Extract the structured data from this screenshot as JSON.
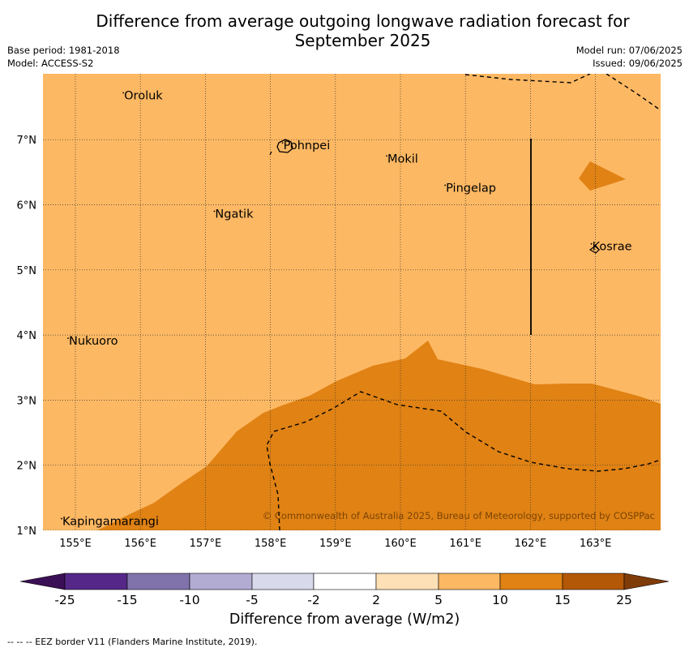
{
  "title_line1": "Difference from average outgoing longwave radiation forecast for",
  "title_line2": "September 2025",
  "base_period": "Base period: 1981-2018",
  "model": "Model: ACCESS-S2",
  "model_run": "Model run: 07/06/2025",
  "issued": "Issued: 09/06/2025",
  "copyright": "© Commonwealth of Australia 2025, Bureau of Meteorology, supported by COSPPac",
  "lon_labels": [
    "155°E",
    "156°E",
    "157°E",
    "158°E",
    "159°E",
    "160°E",
    "161°E",
    "162°E",
    "163°E"
  ],
  "lat_labels": [
    "7°N",
    "6°N",
    "5°N",
    "4°N",
    "3°N",
    "2°N",
    "1°N"
  ],
  "places": [
    {
      "name": "Oroluk",
      "lon": 155.75,
      "lat": 7.62
    },
    {
      "name": "Pohnpei",
      "lon": 158.2,
      "lat": 6.85
    },
    {
      "name": "Mokil",
      "lon": 159.8,
      "lat": 6.65
    },
    {
      "name": "Pingelap",
      "lon": 160.7,
      "lat": 6.2
    },
    {
      "name": "Ngatik",
      "lon": 157.15,
      "lat": 5.8
    },
    {
      "name": "Kosrae",
      "lon": 162.95,
      "lat": 5.3
    },
    {
      "name": "Nukuoro",
      "lon": 154.9,
      "lat": 3.85
    },
    {
      "name": "Kapingamarangi",
      "lon": 154.8,
      "lat": 1.08
    }
  ],
  "colorbar": {
    "title": "Difference from average (W/m2)",
    "tick_labels": [
      "-25",
      "-15",
      "-10",
      "-5",
      "-2",
      "2",
      "5",
      "10",
      "15",
      "25"
    ],
    "colors": [
      "#3b0f55",
      "#542788",
      "#8073ac",
      "#b2abd2",
      "#d8daeb",
      "#ffffff",
      "#fee0b6",
      "#fdb863",
      "#e08214",
      "#b35806",
      "#7f3b08"
    ]
  },
  "map_colors": {
    "background": "#fdb863",
    "high": "#e08214"
  },
  "footnote": "--  --  -- EEZ border V11 (Flanders Marine Institute, 2019)."
}
